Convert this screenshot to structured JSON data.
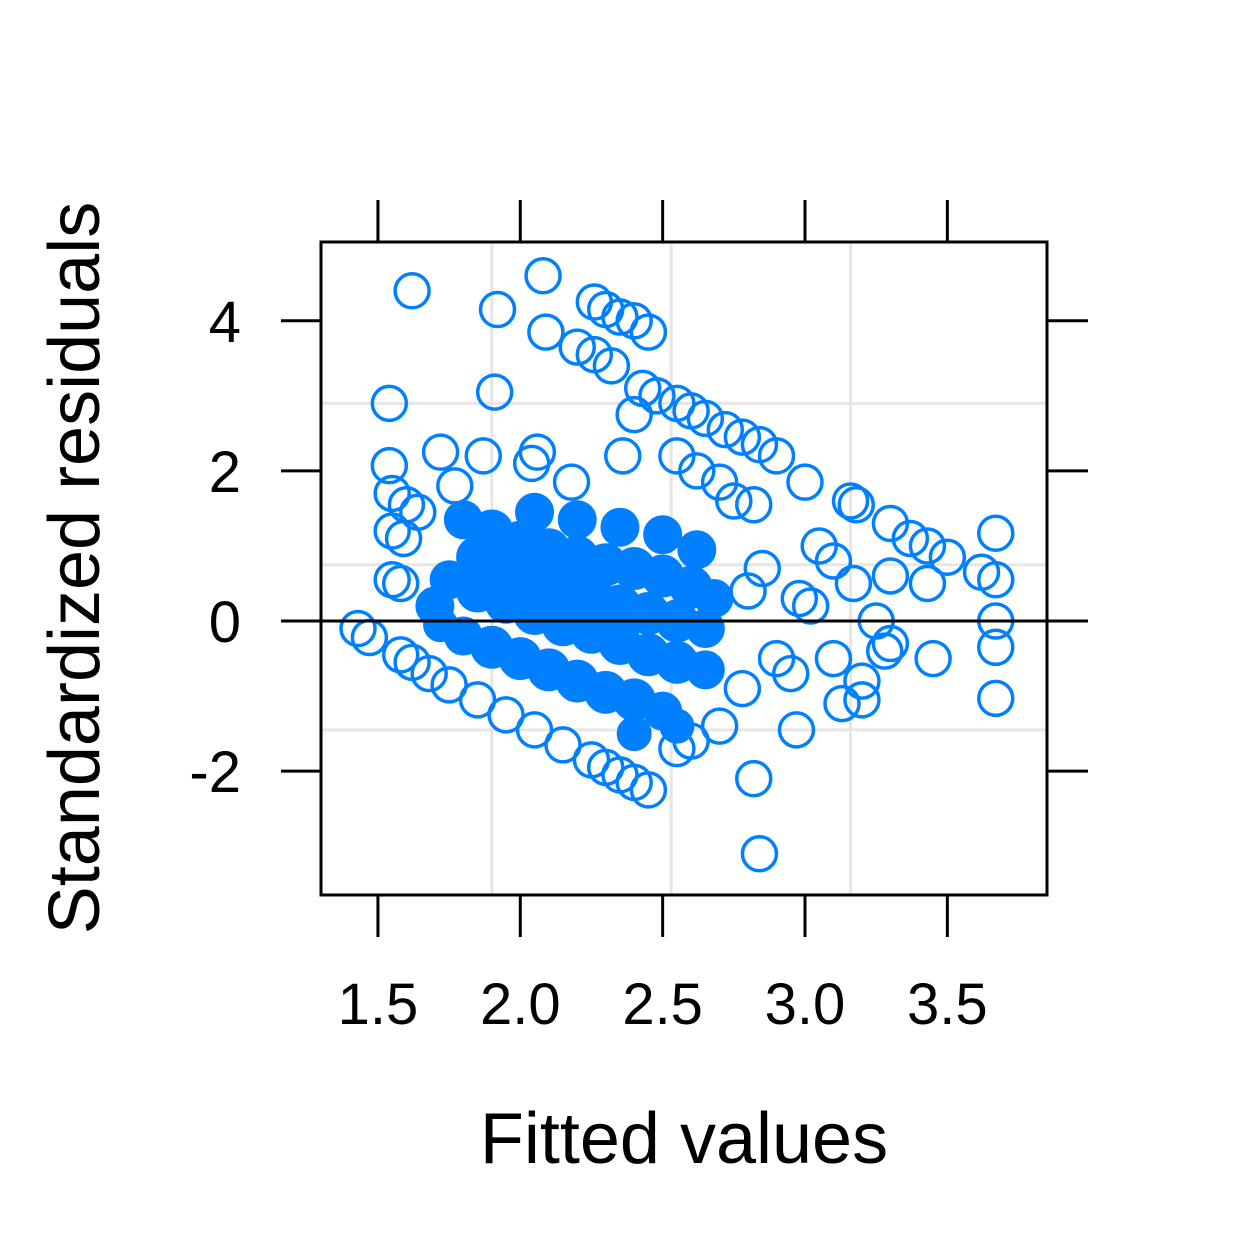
{
  "chart_data": {
    "type": "scatter",
    "xlabel": "Fitted values",
    "ylabel": "Standardized residuals",
    "xlim": [
      1.3,
      3.85
    ],
    "ylim": [
      -3.65,
      5.05
    ],
    "xticks": [
      1.5,
      2.0,
      2.5,
      3.0,
      3.5
    ],
    "xtick_labels": [
      "1.5",
      "2.0",
      "2.5",
      "3.0",
      "3.5"
    ],
    "yticks": [
      -2,
      0,
      2,
      4
    ],
    "ytick_labels": [
      "-2",
      "0",
      "2",
      "4"
    ],
    "xgrid": [
      1.9,
      2.53,
      3.16
    ],
    "ygrid": [
      -1.45,
      0.75,
      2.9
    ],
    "reference_line_y": 0,
    "grid": true,
    "marker": "open-circle",
    "colors": {
      "points": "#0080FF",
      "grid": "#E6E6E6",
      "axis": "#000000"
    },
    "series": [
      {
        "points": [
          [
            1.43,
            -0.1
          ],
          [
            1.47,
            -0.22
          ],
          [
            1.55,
            0.55
          ],
          [
            1.58,
            0.5
          ],
          [
            1.55,
            1.2
          ],
          [
            1.59,
            1.1
          ],
          [
            1.55,
            1.7
          ],
          [
            1.6,
            1.55
          ],
          [
            1.64,
            1.45
          ],
          [
            1.54,
            2.07
          ],
          [
            1.54,
            2.9
          ],
          [
            1.62,
            4.4
          ],
          [
            1.92,
            4.15
          ],
          [
            2.08,
            4.6
          ],
          [
            2.09,
            3.85
          ],
          [
            2.26,
            4.25
          ],
          [
            2.3,
            4.15
          ],
          [
            2.35,
            4.05
          ],
          [
            2.4,
            4.0
          ],
          [
            2.45,
            3.85
          ],
          [
            2.2,
            3.65
          ],
          [
            2.26,
            3.55
          ],
          [
            2.32,
            3.4
          ],
          [
            1.91,
            3.05
          ],
          [
            2.43,
            3.1
          ],
          [
            2.48,
            3.0
          ],
          [
            2.55,
            2.9
          ],
          [
            2.6,
            2.8
          ],
          [
            2.65,
            2.7
          ],
          [
            2.72,
            2.55
          ],
          [
            2.78,
            2.45
          ],
          [
            2.84,
            2.35
          ],
          [
            2.9,
            2.2
          ],
          [
            3.0,
            1.85
          ],
          [
            3.16,
            1.6
          ],
          [
            3.18,
            1.55
          ],
          [
            3.3,
            1.3
          ],
          [
            3.37,
            1.1
          ],
          [
            3.43,
            1.0
          ],
          [
            3.5,
            0.85
          ],
          [
            3.62,
            0.65
          ],
          [
            3.67,
            1.17
          ],
          [
            3.67,
            0.55
          ],
          [
            3.67,
            0.0
          ],
          [
            3.67,
            -0.35
          ],
          [
            3.67,
            -1.03
          ],
          [
            3.43,
            0.5
          ],
          [
            3.3,
            0.6
          ],
          [
            3.25,
            0.0
          ],
          [
            3.45,
            -0.5
          ],
          [
            3.3,
            -0.3
          ],
          [
            3.2,
            -0.8
          ],
          [
            3.1,
            -0.5
          ],
          [
            3.05,
            1.0
          ],
          [
            3.1,
            0.8
          ],
          [
            2.98,
            0.3
          ],
          [
            2.9,
            -0.5
          ],
          [
            2.97,
            -1.45
          ],
          [
            2.82,
            -2.1
          ],
          [
            2.84,
            -3.1
          ],
          [
            2.7,
            -1.4
          ],
          [
            2.6,
            -1.6
          ],
          [
            2.55,
            -1.7
          ],
          [
            2.45,
            -2.25
          ],
          [
            2.4,
            -2.15
          ],
          [
            2.35,
            -2.05
          ],
          [
            2.3,
            -1.95
          ],
          [
            2.25,
            -1.85
          ],
          [
            2.15,
            -1.65
          ],
          [
            2.05,
            -1.45
          ],
          [
            1.95,
            -1.25
          ],
          [
            1.85,
            -1.05
          ],
          [
            1.75,
            -0.85
          ],
          [
            1.68,
            -0.7
          ],
          [
            1.62,
            -0.55
          ],
          [
            1.58,
            -0.45
          ],
          [
            1.72,
            2.25
          ],
          [
            1.87,
            2.2
          ],
          [
            2.04,
            2.1
          ],
          [
            2.06,
            2.25
          ],
          [
            2.18,
            1.85
          ],
          [
            1.77,
            1.8
          ],
          [
            2.36,
            2.2
          ],
          [
            2.4,
            2.75
          ],
          [
            2.55,
            2.2
          ],
          [
            2.62,
            2.0
          ],
          [
            2.7,
            1.85
          ],
          [
            2.75,
            1.6
          ],
          [
            2.82,
            1.55
          ],
          [
            2.85,
            0.7
          ],
          [
            2.8,
            0.4
          ],
          [
            2.78,
            -0.9
          ],
          [
            2.95,
            -0.7
          ],
          [
            3.13,
            -1.1
          ],
          [
            3.2,
            -1.05
          ],
          [
            3.28,
            -0.4
          ],
          [
            3.17,
            0.5
          ],
          [
            3.02,
            0.2
          ]
        ]
      }
    ]
  }
}
